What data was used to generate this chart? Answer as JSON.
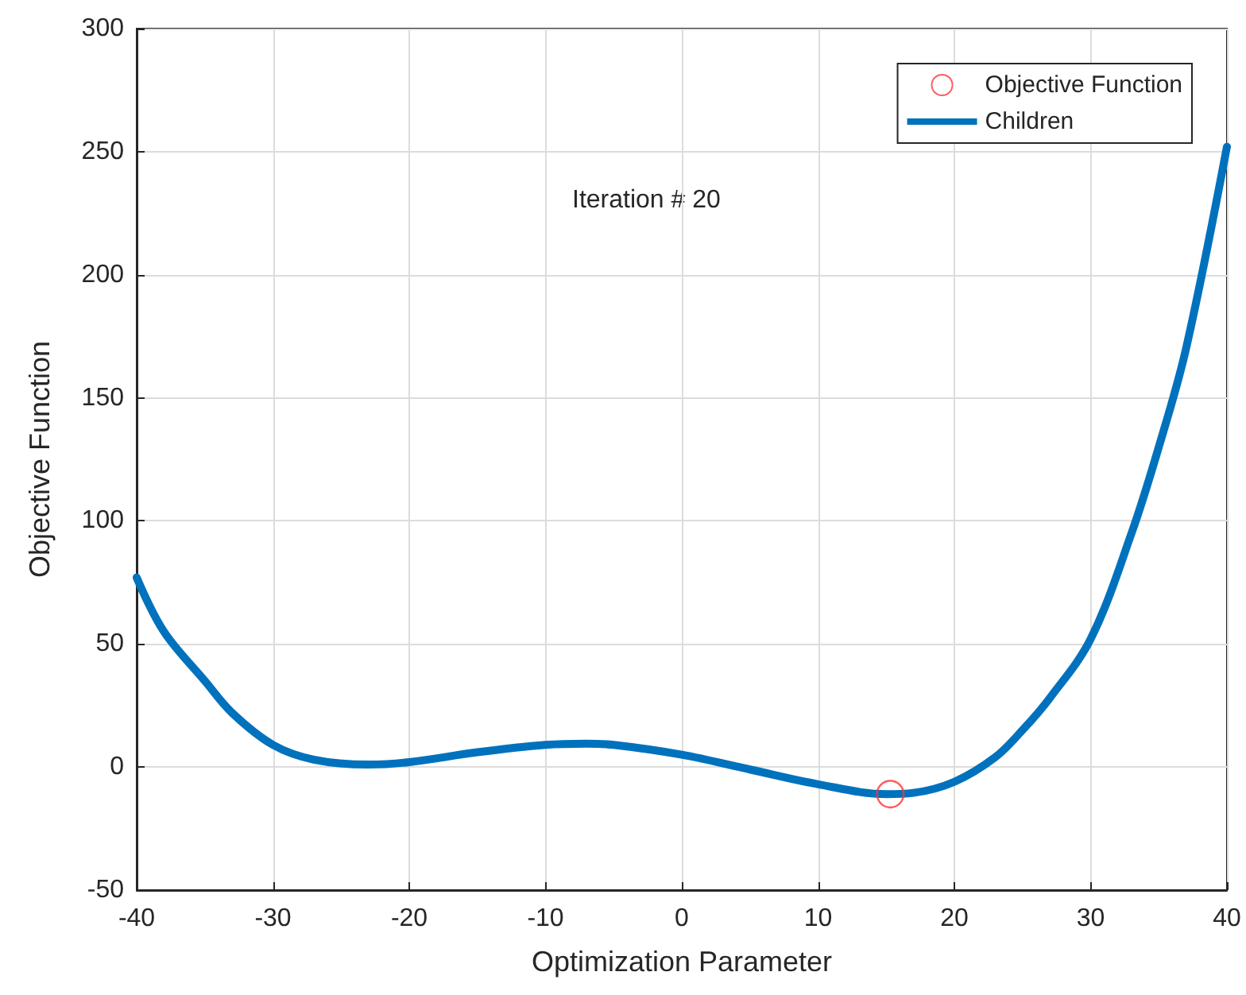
{
  "chart_data": {
    "type": "line",
    "xlabel": "Optimization Parameter",
    "ylabel": "Objective Function",
    "annotations": [
      "Iteration # 20"
    ],
    "xlim": [
      -40,
      40
    ],
    "xticks": [
      -40,
      -30,
      -20,
      -10,
      0,
      10,
      20,
      30,
      40
    ],
    "ylim": [
      -50,
      300
    ],
    "yticks": [
      -50,
      0,
      50,
      100,
      150,
      200,
      250,
      300
    ],
    "grid": true,
    "legend": "top right",
    "line_style": "solid",
    "series": [
      {
        "name": "Objective Function",
        "type": "scatter",
        "marker": "circle",
        "color": "#ff3333",
        "x": [
          15.3
        ],
        "values": [
          -11
        ]
      },
      {
        "name": "Children",
        "marker": "none",
        "color": "#0072bd",
        "x": [
          -40,
          -38,
          -35,
          -33,
          -30,
          -27,
          -23,
          -20,
          -15,
          -10,
          -7,
          -5,
          0,
          5,
          10,
          15,
          17,
          20,
          23,
          25,
          27,
          30,
          33,
          35,
          37,
          40
        ],
        "values": [
          77,
          55,
          35,
          22,
          9,
          3,
          1,
          2,
          6,
          9,
          9.5,
          9,
          5,
          -1,
          -7,
          -11,
          -10.5,
          -6,
          4,
          15,
          28,
          52,
          95,
          130,
          170,
          252
        ]
      }
    ]
  }
}
